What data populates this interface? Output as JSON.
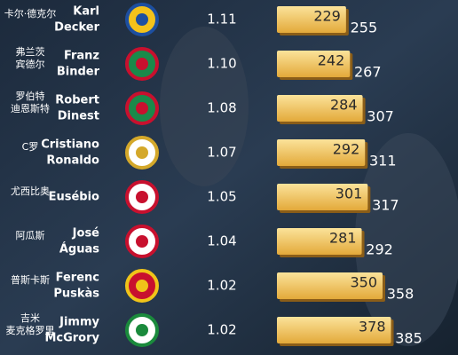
{
  "chart_data": {
    "type": "bar",
    "categories": [
      [
        "卡尔·德克尔"
      ],
      [
        "弗兰茨",
        "宾德尔"
      ],
      [
        "罗伯特",
        "迪恩斯特"
      ],
      [
        "C罗"
      ],
      [
        "尤西比奥"
      ],
      [
        "阿瓜斯"
      ],
      [
        "普斯卡斯"
      ],
      [
        "吉米",
        "麦克格罗里"
      ]
    ],
    "english_names": [
      [
        "Karl",
        "Decker"
      ],
      [
        "Franz",
        "Binder"
      ],
      [
        "Robert",
        "Dinest"
      ],
      [
        "Cristiano",
        "Ronaldo"
      ],
      [
        "Eusébio"
      ],
      [
        "José",
        "Águas"
      ],
      [
        "Ferenc",
        "Puskàs"
      ],
      [
        "Jimmy",
        "McGrory"
      ]
    ],
    "ratios": [
      "1.11",
      "1.10",
      "1.08",
      "1.07",
      "1.05",
      "1.04",
      "1.02",
      "1.02"
    ],
    "values": [
      229,
      242,
      284,
      292,
      301,
      281,
      350,
      378
    ],
    "games": [
      255,
      267,
      307,
      311,
      317,
      292,
      358,
      385
    ],
    "color": "#f2c45a"
  }
}
